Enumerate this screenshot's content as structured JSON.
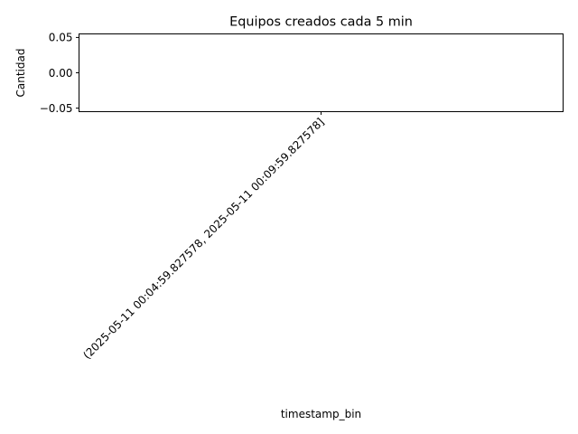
{
  "chart_data": {
    "type": "bar",
    "title": "Equipos creados cada 5 min",
    "xlabel": "timestamp_bin",
    "ylabel": "Cantidad",
    "categories": [
      "(2025-05-11 00:04:59.827578, 2025-05-11 00:09:59.827578]"
    ],
    "values": [
      0
    ],
    "ylim": [
      -0.055,
      0.055
    ],
    "yticks": [
      "0.05",
      "0.00",
      "−0.05"
    ],
    "ytick_values": [
      0.05,
      0.0,
      -0.05
    ],
    "grid": false,
    "legend": "none"
  }
}
